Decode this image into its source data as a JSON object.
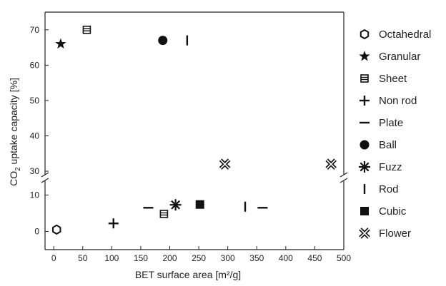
{
  "chart_data": {
    "type": "scatter",
    "xlabel": "BET surface area [m²/g]",
    "ylabel_parts": {
      "main": "CO",
      "sub": "2",
      "rest": " uptake capacity [%]"
    },
    "xlim": [
      -15,
      500
    ],
    "xticks": [
      0,
      50,
      100,
      150,
      200,
      250,
      300,
      350,
      400,
      450,
      500
    ],
    "y_break": {
      "lower_range": [
        -5,
        14
      ],
      "upper_range": [
        29,
        75
      ]
    },
    "yticks_lower": [
      0,
      10
    ],
    "yticks_upper": [
      30,
      40,
      50,
      60,
      70
    ],
    "legend_position": "right",
    "grid": false,
    "series": [
      {
        "name": "Octahedral",
        "marker": "hexagon",
        "points": [
          [
            5,
            0.5
          ]
        ]
      },
      {
        "name": "Granular",
        "marker": "star",
        "points": [
          [
            12,
            66
          ]
        ]
      },
      {
        "name": "Sheet",
        "marker": "square-lines",
        "points": [
          [
            57,
            70
          ],
          [
            190,
            4.8
          ]
        ]
      },
      {
        "name": "Non rod",
        "marker": "plus",
        "points": [
          [
            103,
            2.2
          ]
        ]
      },
      {
        "name": "Plate",
        "marker": "hline",
        "points": [
          [
            163,
            6.5
          ],
          [
            360,
            6.5
          ]
        ]
      },
      {
        "name": "Ball",
        "marker": "circle",
        "points": [
          [
            188,
            67
          ]
        ]
      },
      {
        "name": "Fuzz",
        "marker": "asterisk",
        "points": [
          [
            210,
            7.3
          ]
        ]
      },
      {
        "name": "Rod",
        "marker": "vline",
        "points": [
          [
            230,
            67
          ],
          [
            330,
            6.8
          ]
        ]
      },
      {
        "name": "Cubic",
        "marker": "square",
        "points": [
          [
            252,
            7.4
          ]
        ]
      },
      {
        "name": "Flower",
        "marker": "flower",
        "points": [
          [
            295,
            32
          ],
          [
            478,
            32
          ]
        ]
      }
    ]
  }
}
